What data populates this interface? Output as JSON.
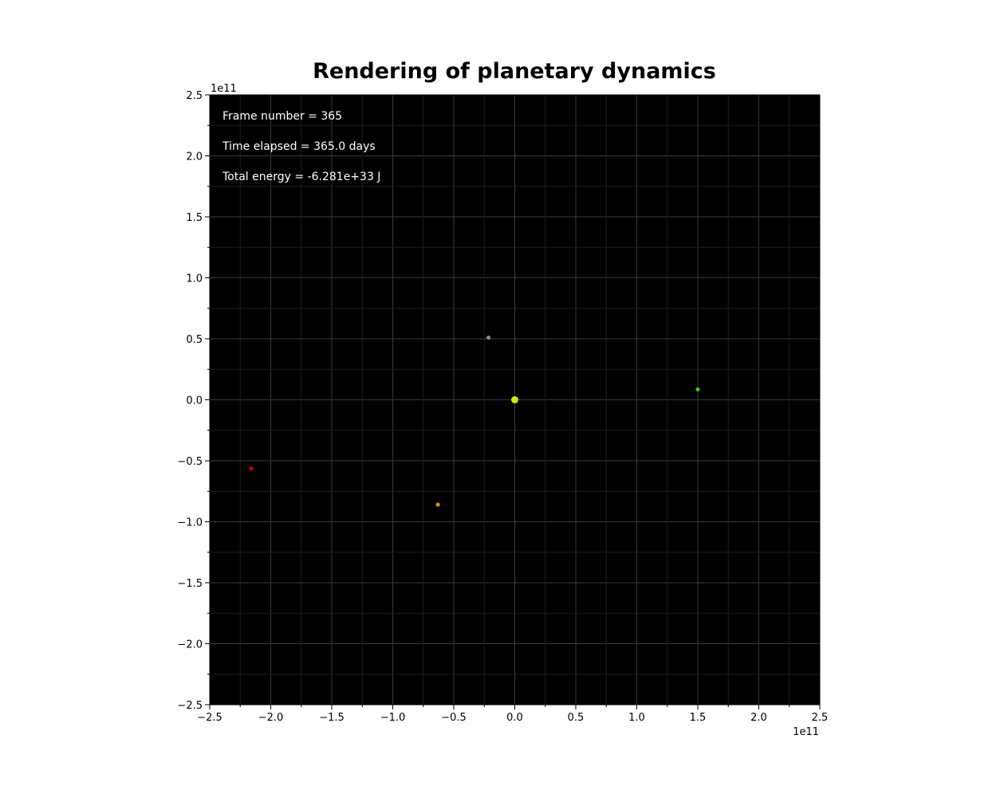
{
  "chart_data": {
    "type": "scatter",
    "title": "Rendering of planetary dynamics",
    "xlabel": "",
    "ylabel": "",
    "xlim": [
      -250000000000.0,
      250000000000.0
    ],
    "ylim": [
      -250000000000.0,
      250000000000.0
    ],
    "x_offset_label": "1e11",
    "y_offset_label": "1e11",
    "x_ticks": [
      -2.5,
      -2.0,
      -1.5,
      -1.0,
      -0.5,
      0.0,
      0.5,
      1.0,
      1.5,
      2.0,
      2.5
    ],
    "x_tick_labels": [
      "−2.5",
      "−2.0",
      "−1.5",
      "−1.0",
      "−0.5",
      "0.0",
      "0.5",
      "1.0",
      "1.5",
      "2.0",
      "2.5"
    ],
    "y_ticks": [
      -2.5,
      -2.0,
      -1.5,
      -1.0,
      -0.5,
      0.0,
      0.5,
      1.0,
      1.5,
      2.0,
      2.5
    ],
    "y_tick_labels": [
      "−2.5",
      "−2.0",
      "−1.5",
      "−1.0",
      "−0.5",
      "0.0",
      "0.5",
      "1.0",
      "1.5",
      "2.0",
      "2.5"
    ],
    "grid": true,
    "background": "#000000",
    "annotations": [
      "Frame number = 365",
      "Time elapsed = 365.0 days",
      "Total energy = -6.281e+33 J"
    ],
    "points": [
      {
        "x": 0.0,
        "y": 0.0,
        "color": "#ccee00",
        "size": "large"
      },
      {
        "x": -21500000000.0,
        "y": 51000000000.0,
        "color": "#8c8ca0",
        "size": "small"
      },
      {
        "x": 150000000000.0,
        "y": 8500000000.0,
        "color": "#33cc33",
        "size": "small"
      },
      {
        "x": -63000000000.0,
        "y": -86000000000.0,
        "color": "#e69a00",
        "size": "small"
      },
      {
        "x": -216000000000.0,
        "y": -56500000000.0,
        "color": "#cc0000",
        "size": "small"
      }
    ]
  }
}
